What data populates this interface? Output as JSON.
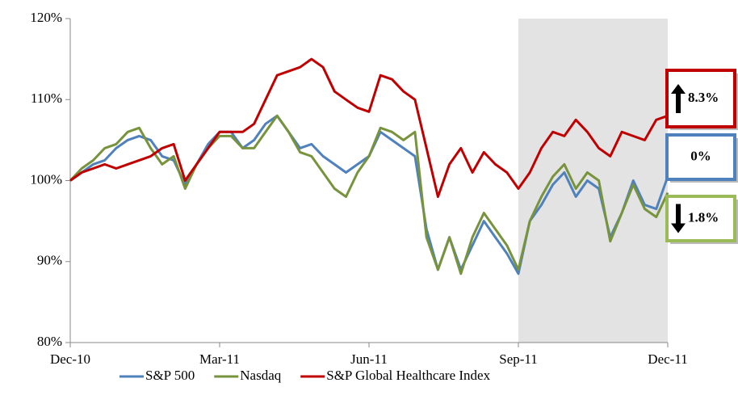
{
  "chart_data": {
    "type": "line",
    "categories": [
      "Dec-10",
      null,
      null,
      null,
      null,
      null,
      null,
      null,
      null,
      null,
      null,
      null,
      null,
      "Mar-11",
      null,
      null,
      null,
      null,
      null,
      null,
      null,
      null,
      null,
      null,
      null,
      null,
      "Jun-11",
      null,
      null,
      null,
      null,
      null,
      null,
      null,
      null,
      null,
      null,
      null,
      null,
      "Sep-11",
      null,
      null,
      null,
      null,
      null,
      null,
      null,
      null,
      null,
      null,
      null,
      null,
      "Dec-11"
    ],
    "series": [
      {
        "name": "S&P 500",
        "color": "#4f81bd",
        "values": [
          100,
          101,
          102,
          102.5,
          104,
          105,
          105.5,
          105,
          103,
          102.5,
          99.5,
          102,
          104.5,
          106,
          106,
          104,
          105,
          107,
          108,
          106,
          104,
          104.5,
          103,
          102,
          101,
          102,
          103,
          106,
          105,
          104,
          103,
          94,
          89,
          93,
          89,
          92,
          95,
          93,
          91,
          88.5,
          95,
          97,
          99.5,
          101,
          98,
          100,
          99,
          93,
          96,
          100,
          97,
          96.5,
          100.5
        ]
      },
      {
        "name": "Nasdaq",
        "color": "#77933c",
        "values": [
          100,
          101.5,
          102.5,
          104,
          104.5,
          106,
          106.5,
          104,
          102,
          103,
          99,
          102,
          104,
          105.5,
          105.5,
          104,
          104,
          106,
          108,
          106,
          103.5,
          103,
          101,
          99,
          98,
          101,
          103,
          106.5,
          106,
          105,
          106,
          93,
          89,
          93,
          88.5,
          93,
          96,
          94,
          92,
          89,
          95,
          98,
          100.5,
          102,
          99,
          101,
          100,
          92.5,
          96,
          99.5,
          96.5,
          95.5,
          98.5
        ]
      },
      {
        "name": "S&P Global Healthcare Index",
        "color": "#c00000",
        "values": [
          100,
          101,
          101.5,
          102,
          101.5,
          102,
          102.5,
          103,
          104,
          104.5,
          100,
          102,
          104,
          106,
          106,
          106,
          107,
          110,
          113,
          113.5,
          114,
          115,
          114,
          111,
          110,
          109,
          108.5,
          113,
          112.5,
          111,
          110,
          104,
          98,
          102,
          104,
          101,
          103.5,
          102,
          101,
          99,
          101,
          104,
          106,
          105.5,
          107.5,
          106,
          104,
          103,
          106,
          105.5,
          105,
          107.5,
          108
        ]
      }
    ],
    "ylim": [
      80,
      120
    ],
    "yticks": [
      {
        "value": 80,
        "label": "80%"
      },
      {
        "value": 90,
        "label": "90%"
      },
      {
        "value": 100,
        "label": "100%"
      },
      {
        "value": 110,
        "label": "110%"
      },
      {
        "value": 120,
        "label": "120%"
      }
    ],
    "shaded_range": [
      39,
      52
    ],
    "legend": "bottom",
    "annotations": [
      {
        "text": "8.3%",
        "color": "#c00000",
        "direction": "up"
      },
      {
        "text": "0%",
        "color": "#4f81bd",
        "direction": "none"
      },
      {
        "text": "1.8%",
        "color": "#9bbb59",
        "direction": "down"
      }
    ]
  }
}
